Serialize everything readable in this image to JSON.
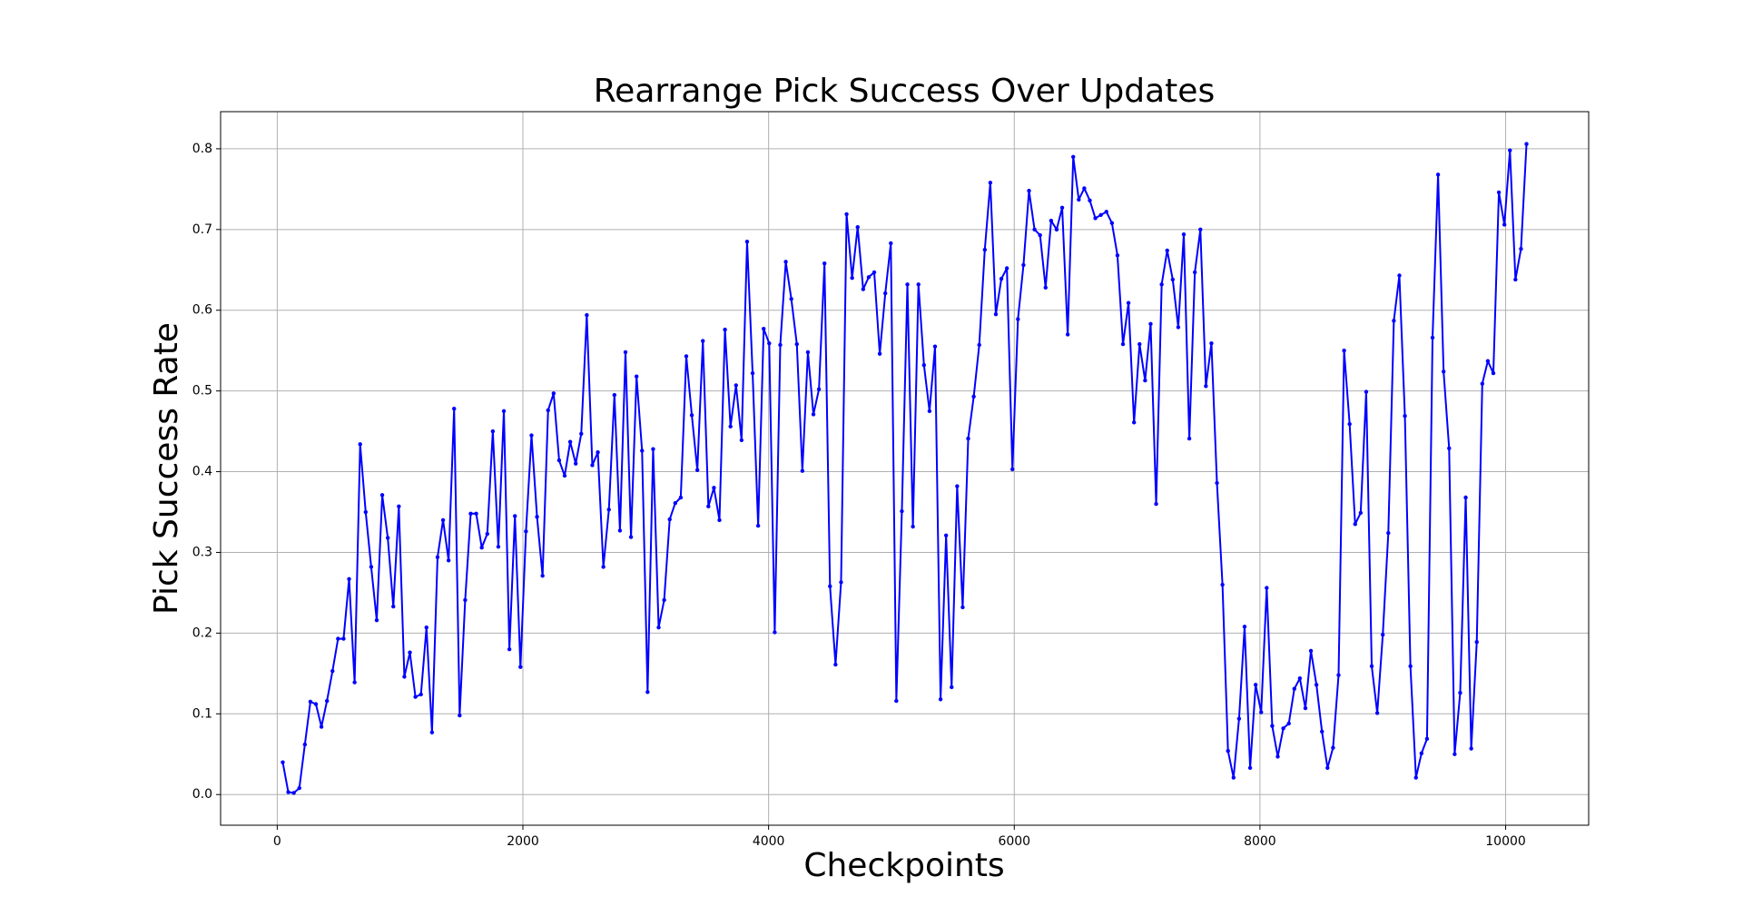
{
  "chart_data": {
    "type": "line",
    "title": "Rearrange Pick Success Over Updates",
    "x_label": "Checkpoints",
    "y_label": "Pick Success Rate",
    "x": [
      45,
      90,
      135,
      180,
      225,
      270,
      315,
      360,
      405,
      450,
      495,
      540,
      585,
      630,
      675,
      720,
      765,
      810,
      855,
      900,
      945,
      990,
      1035,
      1080,
      1125,
      1170,
      1215,
      1260,
      1305,
      1350,
      1395,
      1440,
      1485,
      1530,
      1575,
      1620,
      1665,
      1710,
      1755,
      1800,
      1845,
      1890,
      1935,
      1980,
      2025,
      2070,
      2115,
      2160,
      2205,
      2250,
      2295,
      2340,
      2385,
      2430,
      2475,
      2520,
      2565,
      2610,
      2655,
      2700,
      2745,
      2790,
      2835,
      2880,
      2925,
      2970,
      3015,
      3060,
      3105,
      3150,
      3195,
      3240,
      3285,
      3330,
      3375,
      3420,
      3465,
      3510,
      3555,
      3600,
      3645,
      3690,
      3735,
      3780,
      3825,
      3870,
      3915,
      3960,
      4005,
      4050,
      4095,
      4140,
      4185,
      4230,
      4275,
      4320,
      4365,
      4410,
      4455,
      4500,
      4545,
      4590,
      4635,
      4680,
      4725,
      4770,
      4815,
      4860,
      4905,
      4950,
      4995,
      5040,
      5085,
      5130,
      5175,
      5220,
      5265,
      5310,
      5355,
      5400,
      5445,
      5490,
      5535,
      5580,
      5625,
      5670,
      5715,
      5760,
      5805,
      5850,
      5895,
      5940,
      5985,
      6030,
      6075,
      6120,
      6165,
      6210,
      6255,
      6300,
      6345,
      6390,
      6435,
      6480,
      6525,
      6570,
      6615,
      6660,
      6705,
      6750,
      6795,
      6840,
      6885,
      6930,
      6975,
      7020,
      7065,
      7110,
      7155,
      7200,
      7245,
      7290,
      7335,
      7380,
      7425,
      7470,
      7515,
      7560,
      7605,
      7650,
      7695,
      7740,
      7785,
      7830,
      7875,
      7920,
      7965,
      8010,
      8055,
      8100,
      8145,
      8190,
      8235,
      8280,
      8325,
      8370,
      8415,
      8460,
      8505,
      8550,
      8595,
      8640,
      8685,
      8730,
      8775,
      8820,
      8865,
      8910,
      8955,
      9000,
      9045,
      9090,
      9135,
      9180,
      9225,
      9270,
      9315,
      9360,
      9405,
      9450,
      9495,
      9540,
      9585,
      9630,
      9675,
      9720,
      9765,
      9810,
      9855,
      9900,
      9945,
      9990,
      10035,
      10080,
      10125,
      10170
    ],
    "series": [
      {
        "color": "#0000ff",
        "values": [
          0.04,
          0.003,
          0.002,
          0.008,
          0.062,
          0.115,
          0.112,
          0.084,
          0.116,
          0.153,
          0.193,
          0.193,
          0.267,
          0.139,
          0.434,
          0.35,
          0.282,
          0.216,
          0.371,
          0.318,
          0.233,
          0.357,
          0.146,
          0.176,
          0.121,
          0.124,
          0.207,
          0.077,
          0.294,
          0.34,
          0.29,
          0.478,
          0.098,
          0.241,
          0.348,
          0.348,
          0.306,
          0.323,
          0.45,
          0.307,
          0.475,
          0.18,
          0.345,
          0.158,
          0.326,
          0.445,
          0.344,
          0.271,
          0.476,
          0.497,
          0.414,
          0.395,
          0.437,
          0.41,
          0.447,
          0.594,
          0.408,
          0.424,
          0.282,
          0.353,
          0.495,
          0.327,
          0.548,
          0.319,
          0.518,
          0.426,
          0.127,
          0.428,
          0.207,
          0.241,
          0.341,
          0.361,
          0.368,
          0.543,
          0.47,
          0.402,
          0.562,
          0.357,
          0.38,
          0.34,
          0.576,
          0.456,
          0.507,
          0.439,
          0.685,
          0.522,
          0.333,
          0.577,
          0.559,
          0.201,
          0.557,
          0.66,
          0.614,
          0.558,
          0.401,
          0.548,
          0.471,
          0.502,
          0.658,
          0.258,
          0.161,
          0.263,
          0.719,
          0.64,
          0.703,
          0.626,
          0.641,
          0.647,
          0.546,
          0.621,
          0.683,
          0.116,
          0.351,
          0.632,
          0.332,
          0.632,
          0.532,
          0.475,
          0.555,
          0.118,
          0.321,
          0.133,
          0.382,
          0.232,
          0.441,
          0.493,
          0.557,
          0.675,
          0.758,
          0.595,
          0.639,
          0.652,
          0.403,
          0.589,
          0.656,
          0.748,
          0.7,
          0.693,
          0.628,
          0.711,
          0.7,
          0.727,
          0.57,
          0.79,
          0.737,
          0.751,
          0.736,
          0.714,
          0.718,
          0.722,
          0.708,
          0.668,
          0.558,
          0.609,
          0.461,
          0.558,
          0.513,
          0.583,
          0.36,
          0.632,
          0.674,
          0.638,
          0.579,
          0.694,
          0.441,
          0.647,
          0.7,
          0.506,
          0.559,
          0.386,
          0.26,
          0.054,
          0.021,
          0.094,
          0.208,
          0.033,
          0.136,
          0.102,
          0.256,
          0.085,
          0.047,
          0.082,
          0.088,
          0.131,
          0.144,
          0.107,
          0.178,
          0.136,
          0.078,
          0.033,
          0.058,
          0.148,
          0.55,
          0.459,
          0.335,
          0.349,
          0.499,
          0.159,
          0.101,
          0.198,
          0.324,
          0.587,
          0.643,
          0.469,
          0.159,
          0.021,
          0.051,
          0.069,
          0.566,
          0.768,
          0.524,
          0.429,
          0.05,
          0.126,
          0.368,
          0.057,
          0.189,
          0.509,
          0.537,
          0.522,
          0.746,
          0.706,
          0.798,
          0.638,
          0.676,
          0.806
        ]
      }
    ],
    "xlim": [
      -461,
      10676
    ],
    "ylim": [
      -0.038,
      0.846
    ],
    "xticks": [
      0,
      2000,
      4000,
      6000,
      8000,
      10000
    ],
    "yticks": [
      {
        "value": 0,
        "label": "0.0"
      },
      0.1,
      0.2,
      0.3,
      0.4,
      0.5,
      0.6,
      0.7,
      0.8
    ],
    "grid": true
  }
}
